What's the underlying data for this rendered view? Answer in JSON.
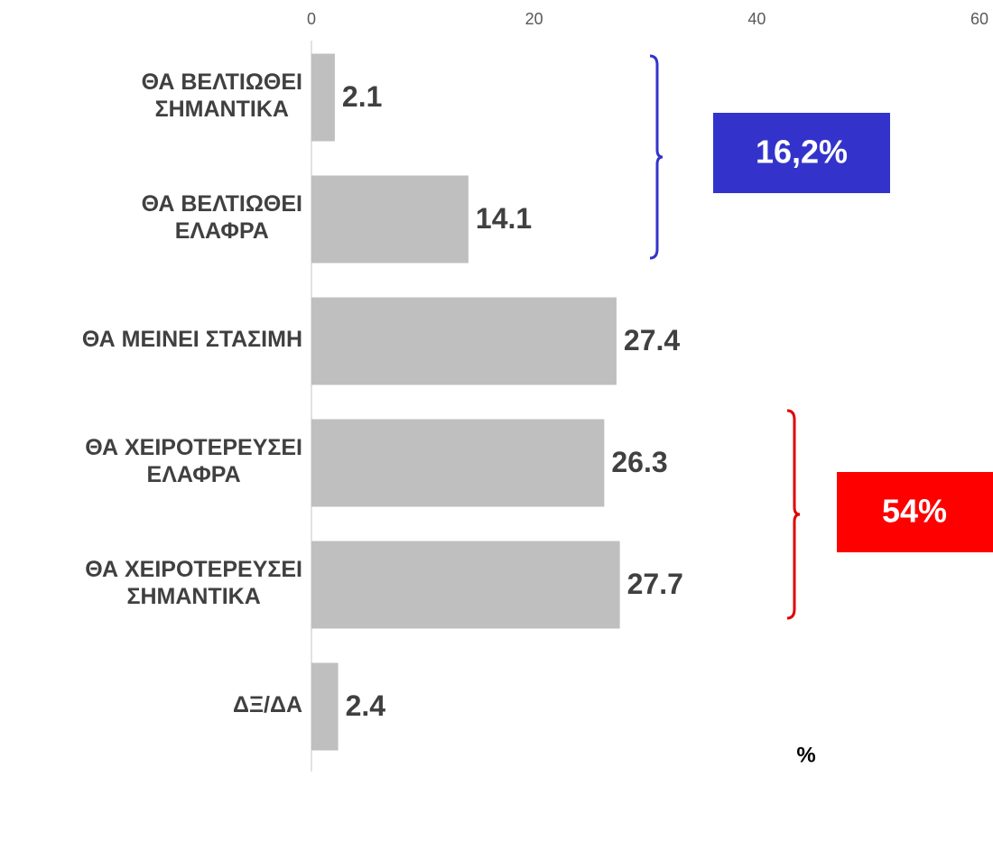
{
  "chart_data": {
    "type": "bar",
    "orientation": "horizontal",
    "categories": [
      [
        "ΘΑ ΒΕΛΤΙΩΘΕΙ",
        "ΣΗΜΑΝΤΙΚΑ"
      ],
      [
        "ΘΑ ΒΕΛΤΙΩΘΕΙ",
        "ΕΛΑΦΡΑ"
      ],
      [
        "ΘΑ ΜΕΙΝΕΙ ΣΤΑΣΙΜΗ"
      ],
      [
        "ΘΑ ΧΕΙΡΟΤΕΡΕΥΣΕΙ",
        "ΕΛΑΦΡΑ"
      ],
      [
        "ΘΑ ΧΕΙΡΟΤΕΡΕΥΣΕΙ",
        "ΣΗΜΑΝΤΙΚΑ"
      ],
      [
        "ΔΞ/ΔΑ"
      ]
    ],
    "values": [
      2.1,
      14.1,
      27.4,
      26.3,
      27.7,
      2.4
    ],
    "color": "#bfbfbf",
    "xlim": [
      0,
      60
    ],
    "xticks": [
      0,
      20,
      40,
      60
    ],
    "x_label": "%",
    "annotations": [
      {
        "text": "16,2%",
        "color": "#3333cc"
      },
      {
        "text": "54%",
        "color": "#ff0000"
      }
    ]
  }
}
